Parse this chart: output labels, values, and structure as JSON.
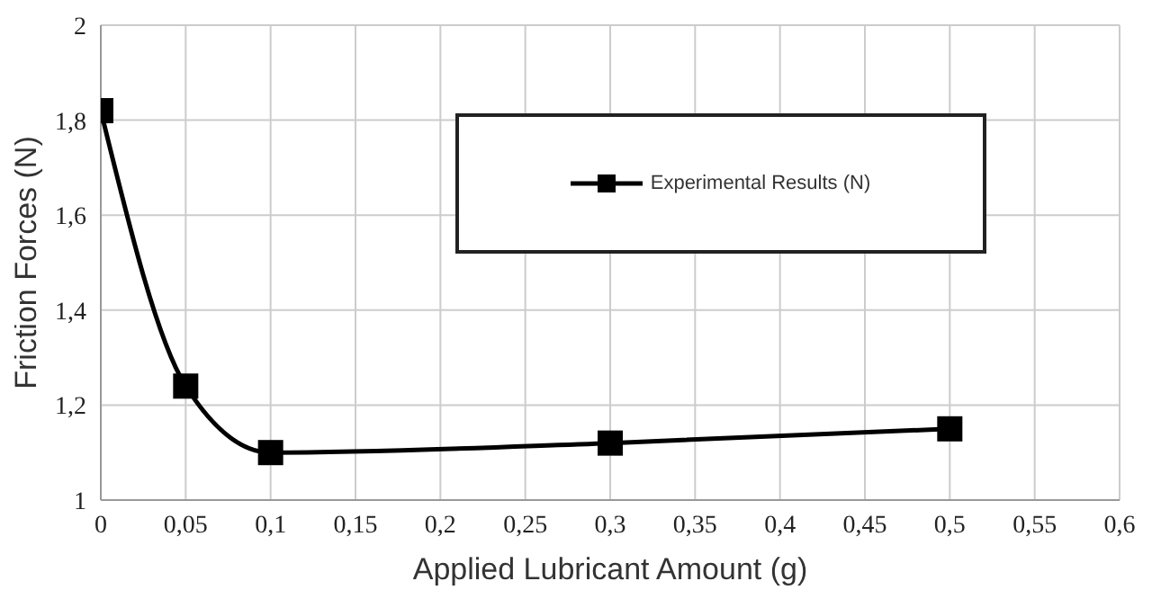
{
  "chart_data": {
    "type": "line",
    "xlabel": "Applied Lubricant Amount (g)",
    "ylabel": "Friction Forces (N)",
    "x": [
      0,
      0.05,
      0.1,
      0.3,
      0.5
    ],
    "series": [
      {
        "name": "Experimental Results (N)",
        "color": "#000000",
        "values": [
          1.82,
          1.24,
          1.1,
          1.12,
          1.15
        ]
      }
    ],
    "xlim": [
      0,
      0.6
    ],
    "ylim": [
      1,
      2
    ],
    "xticks": [
      0,
      {
        "value": 0.05,
        "label": "0,05"
      },
      {
        "value": 0.1,
        "label": "0,1"
      },
      {
        "value": 0.15,
        "label": "0,15"
      },
      {
        "value": 0.2,
        "label": "0,2"
      },
      {
        "value": 0.25,
        "label": "0,25"
      },
      {
        "value": 0.3,
        "label": "0,3"
      },
      {
        "value": 0.35,
        "label": "0,35"
      },
      {
        "value": 0.4,
        "label": "0,4"
      },
      {
        "value": 0.45,
        "label": "0,45"
      },
      {
        "value": 0.5,
        "label": "0,5"
      },
      {
        "value": 0.55,
        "label": "0,55"
      },
      {
        "value": 0.6,
        "label": "0,6"
      }
    ],
    "yticks": [
      1,
      {
        "value": 1.2,
        "label": "1,2"
      },
      {
        "value": 1.4,
        "label": "1,4"
      },
      {
        "value": 1.6,
        "label": "1,6"
      },
      {
        "value": 1.8,
        "label": "1,8"
      },
      2
    ],
    "grid": true,
    "legend": "top",
    "marker": "square",
    "line_style": "solid"
  }
}
